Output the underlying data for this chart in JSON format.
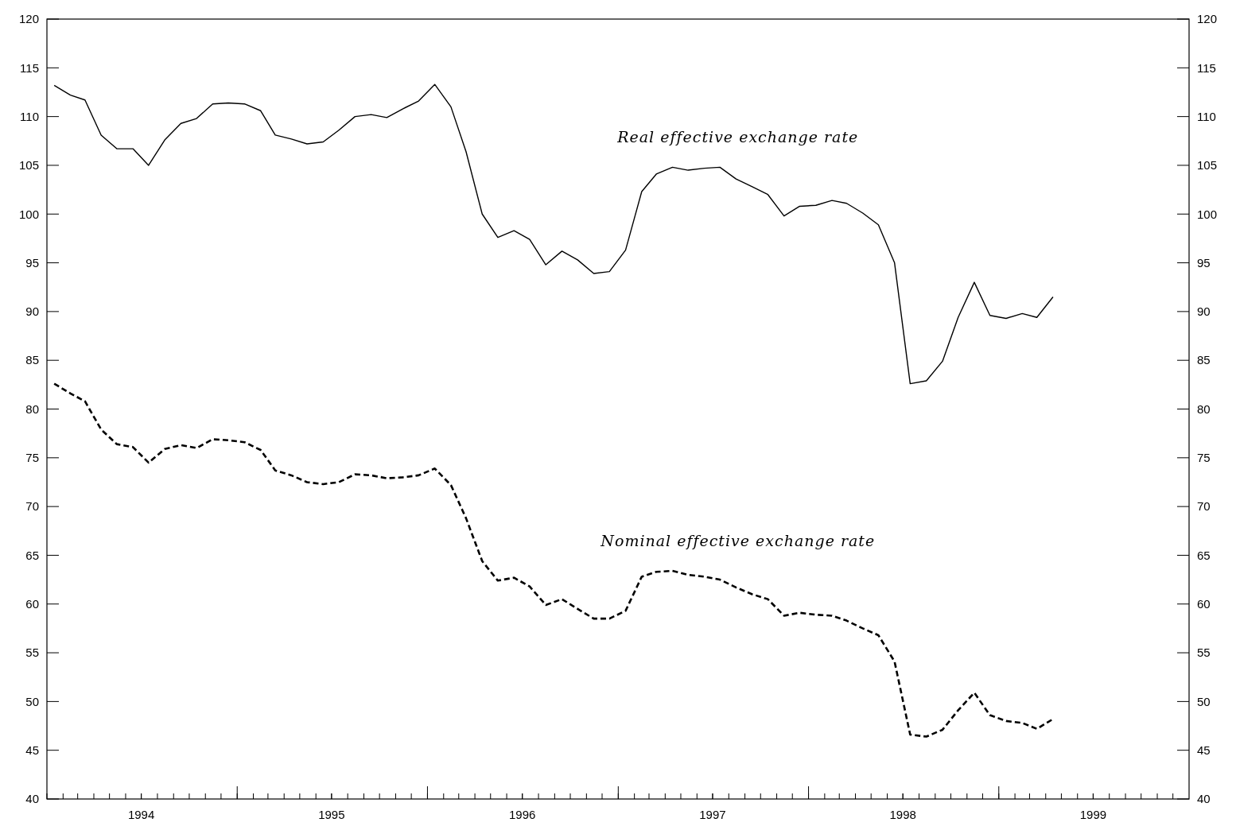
{
  "chart_data": {
    "type": "line",
    "x": [
      "1994-01-15",
      "1994-02-15",
      "1994-03-15",
      "1994-04-15",
      "1994-05-15",
      "1994-06-15",
      "1994-07-15",
      "1994-08-15",
      "1994-09-15",
      "1994-10-15",
      "1994-11-15",
      "1994-12-15",
      "1995-01-15",
      "1995-02-15",
      "1995-03-15",
      "1995-04-15",
      "1995-05-15",
      "1995-06-15",
      "1995-07-15",
      "1995-08-15",
      "1995-09-15",
      "1995-10-15",
      "1995-11-15",
      "1995-12-15",
      "1996-01-15",
      "1996-02-15",
      "1996-03-15",
      "1996-04-15",
      "1996-05-15",
      "1996-06-15",
      "1996-07-15",
      "1996-08-15",
      "1996-09-15",
      "1996-10-15",
      "1996-11-15",
      "1996-12-15",
      "1997-01-15",
      "1997-02-15",
      "1997-03-15",
      "1997-04-15",
      "1997-05-15",
      "1997-06-15",
      "1997-07-15",
      "1997-08-15",
      "1997-09-15",
      "1997-10-15",
      "1997-11-15",
      "1997-12-15",
      "1998-01-15",
      "1998-02-15",
      "1998-03-15",
      "1998-04-15",
      "1998-05-15",
      "1998-06-15",
      "1998-07-15",
      "1998-08-15",
      "1998-09-15",
      "1998-10-15",
      "1998-11-15",
      "1998-12-15",
      "1999-01-15",
      "1999-02-15",
      "1999-03-15",
      "1999-04-15"
    ],
    "series": [
      {
        "name": "Real effective exchange rate",
        "color": "#000000",
        "line_style": "solid",
        "values": [
          113.2,
          112.2,
          111.7,
          108.1,
          106.7,
          106.7,
          105.0,
          107.6,
          109.3,
          109.8,
          111.3,
          111.4,
          111.3,
          110.6,
          108.1,
          107.7,
          107.2,
          107.4,
          108.6,
          110.0,
          110.2,
          109.9,
          110.8,
          111.6,
          113.3,
          111.0,
          106.4,
          100.0,
          97.6,
          98.3,
          97.4,
          94.8,
          96.2,
          95.3,
          93.9,
          94.1,
          96.3,
          102.3,
          104.1,
          104.8,
          104.5,
          104.7,
          104.8,
          103.6,
          102.8,
          102.0,
          99.8,
          100.8,
          100.9,
          101.4,
          101.1,
          100.1,
          98.9,
          95.0,
          82.6,
          82.9,
          84.9,
          89.4,
          93.0,
          89.6,
          89.3,
          89.8,
          89.4,
          91.5
        ]
      },
      {
        "name": "Nominal effective exchange rate",
        "color": "#000000",
        "line_style": "dashed",
        "values": [
          82.6,
          81.6,
          80.8,
          77.9,
          76.4,
          76.1,
          74.5,
          75.9,
          76.3,
          76.0,
          76.9,
          76.8,
          76.6,
          75.8,
          73.7,
          73.2,
          72.5,
          72.3,
          72.5,
          73.3,
          73.2,
          72.9,
          73.0,
          73.2,
          73.9,
          72.2,
          68.8,
          64.4,
          62.4,
          62.7,
          61.8,
          59.9,
          60.5,
          59.5,
          58.5,
          58.5,
          59.3,
          62.8,
          63.3,
          63.4,
          63.0,
          62.8,
          62.5,
          61.7,
          61.0,
          60.5,
          58.8,
          59.1,
          58.9,
          58.8,
          58.3,
          57.5,
          56.8,
          54.1,
          46.6,
          46.4,
          47.1,
          49.1,
          50.9,
          48.6,
          48.0,
          47.8,
          47.2,
          48.2
        ]
      }
    ],
    "xlim": [
      "1994-01-01",
      "2000-01-01"
    ],
    "xticks": [
      {
        "value": "1994-07-01",
        "label": "1994"
      },
      {
        "value": "1995-01-01",
        "label": null
      },
      {
        "value": "1995-07-01",
        "label": "1995"
      },
      {
        "value": "1996-01-01",
        "label": null
      },
      {
        "value": "1996-07-01",
        "label": "1996"
      },
      {
        "value": "1997-01-01",
        "label": null
      },
      {
        "value": "1997-07-01",
        "label": "1997"
      },
      {
        "value": "1998-01-01",
        "label": null
      },
      {
        "value": "1998-07-01",
        "label": "1998"
      },
      {
        "value": "1999-01-01",
        "label": null
      },
      {
        "value": "1999-07-01",
        "label": "1999"
      }
    ],
    "ylim": [
      40,
      120
    ],
    "yticks": [
      40,
      45,
      50,
      55,
      60,
      65,
      70,
      75,
      80,
      85,
      90,
      95,
      100,
      105,
      110,
      115,
      120
    ],
    "y2lim": [
      40,
      120
    ],
    "y2ticks": [
      40,
      45,
      50,
      55,
      60,
      65,
      70,
      75,
      80,
      85,
      90,
      95,
      100,
      105,
      110,
      115,
      120
    ],
    "grid": false
  }
}
